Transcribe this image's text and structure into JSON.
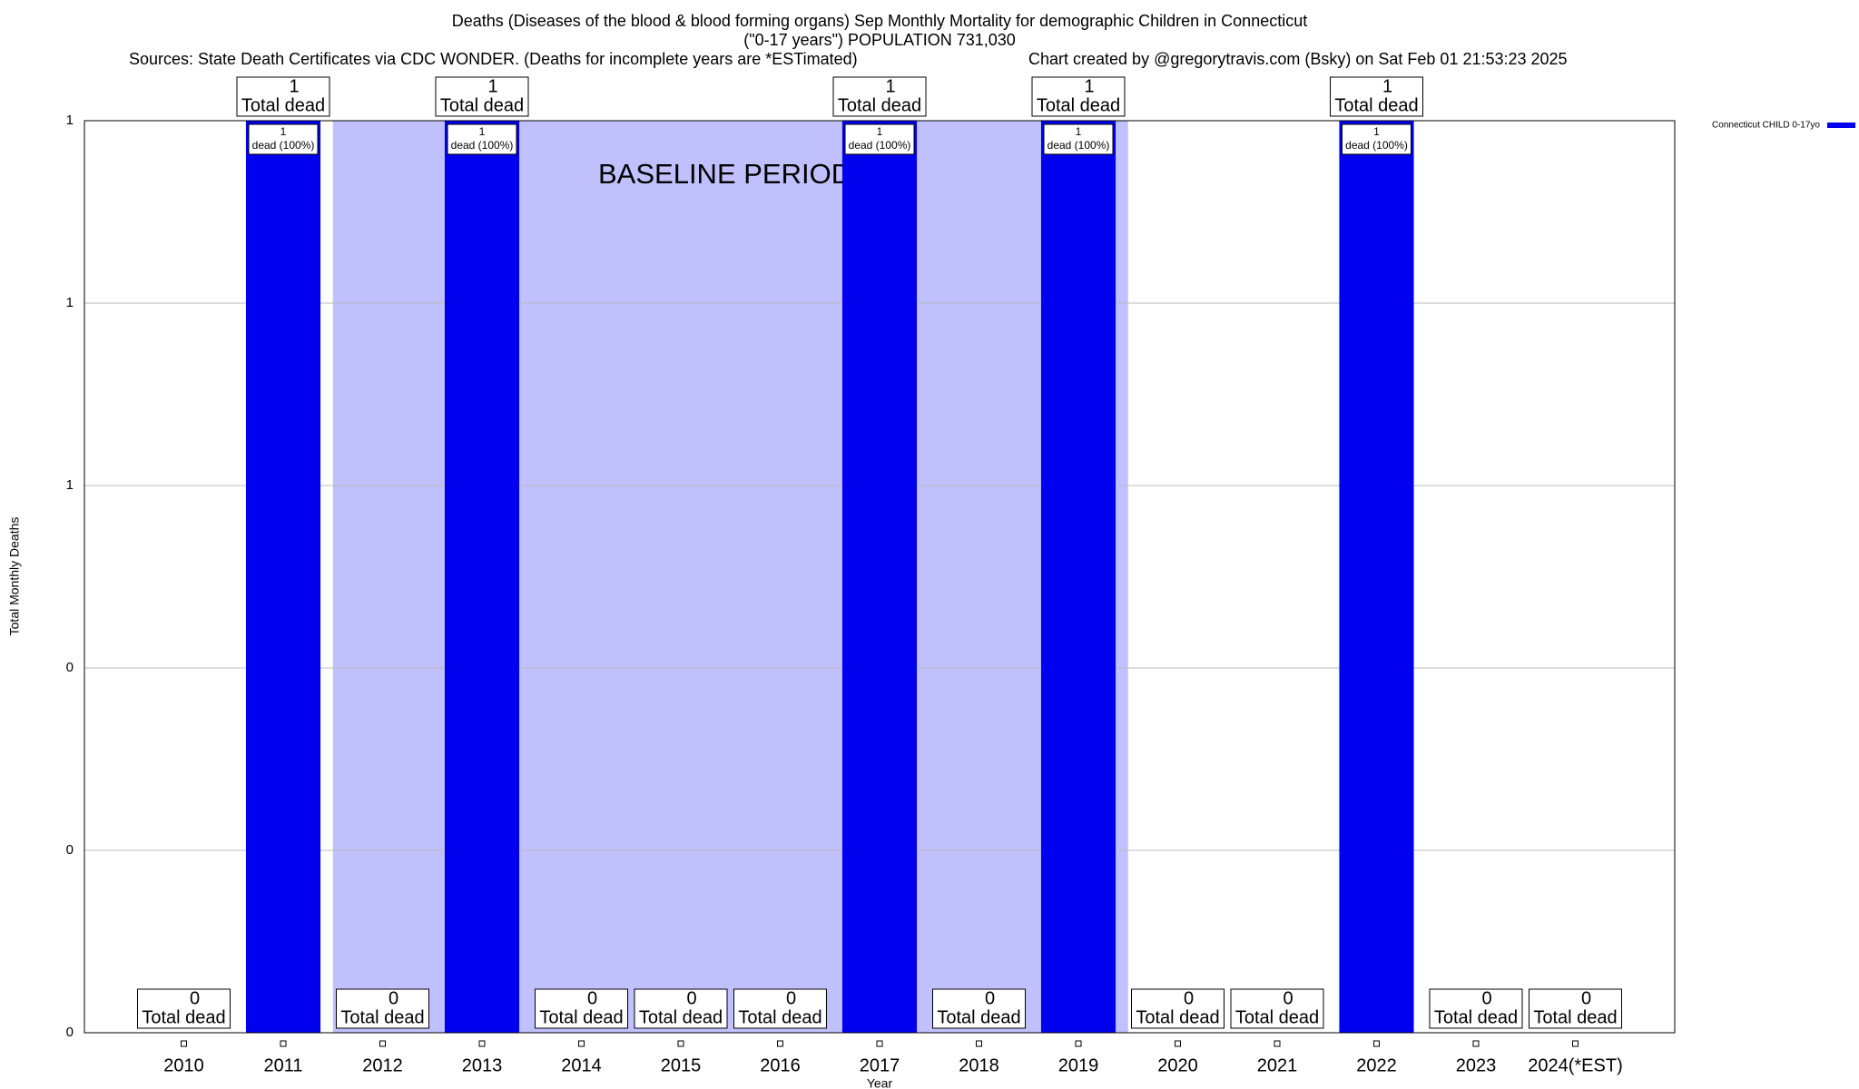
{
  "chart_data": {
    "type": "bar",
    "title": "Deaths (Diseases of the blood & blood forming organs) Sep Monthly Mortality for demographic Children in Connecticut",
    "subtitle": "(\"0-17 years\") POPULATION 731,030",
    "source": "Sources: State Death Certificates via CDC WONDER. (Deaths for incomplete years are *ESTimated)",
    "credit": "Chart created by @gregorytravis.com (Bsky) on Sat Feb 01 21:53:23 2025",
    "x_label": "Year",
    "y_label": "Total Monthly Deaths",
    "categories": [
      "2010",
      "2011",
      "2012",
      "2013",
      "2014",
      "2015",
      "2016",
      "2017",
      "2018",
      "2019",
      "2020",
      "2021",
      "2022",
      "2023",
      "2024(*EST)"
    ],
    "series": [
      {
        "name": "Connecticut CHILD 0-17yo",
        "color": "#0000ee",
        "values": [
          0,
          1,
          0,
          1,
          0,
          0,
          0,
          1,
          0,
          1,
          0,
          0,
          1,
          0,
          0
        ]
      }
    ],
    "total_label": "Total dead",
    "bar_label": "dead (100%)",
    "ylim": [
      0,
      1
    ],
    "yticks": [
      0,
      {
        "value": 0.2,
        "label": "0"
      },
      {
        "value": 0.4,
        "label": "0"
      },
      {
        "value": 0.6,
        "label": "1"
      },
      {
        "value": 0.8,
        "label": "1"
      },
      1
    ],
    "grid": true,
    "legend": "top-right",
    "baseline": {
      "label": "BASELINE PERIOD",
      "start": "2012",
      "end": "2019",
      "color": "#c0c0fc"
    }
  }
}
